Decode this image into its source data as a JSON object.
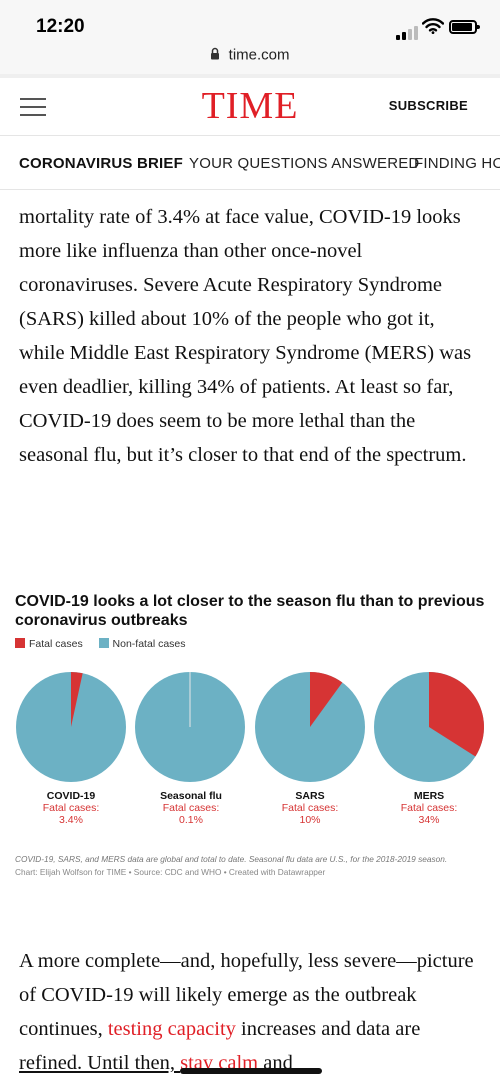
{
  "status_bar": {
    "time": "12:20"
  },
  "browser": {
    "url": "time.com"
  },
  "header": {
    "logo": "TIME",
    "subscribe_label": "SUBSCRIBE"
  },
  "nav": {
    "items": [
      {
        "label": "CORONAVIRUS BRIEF",
        "active": true
      },
      {
        "label": "YOUR QUESTIONS ANSWERED",
        "active": false
      },
      {
        "label": "FINDING HOPE",
        "active": false
      }
    ]
  },
  "article": {
    "paragraph_top": "mortality rate of 3.4% at face value, COVID-19 looks more like influenza than other once-novel coronaviruses. Severe Acute Respiratory Syndrome (SARS) killed about 10% of the people who got it, while Middle East Respiratory Syndrome (MERS) was even deadlier, killing 34% of patients. At least so far, COVID-19 does seem to be more lethal than the seasonal flu, but it’s closer to that end of the spectrum.",
    "paragraph_bottom": {
      "part1": "A more complete—and, hopefully, less severe—picture of COVID-19 will likely emerge as the outbreak continues, ",
      "link1": "testing capacity",
      "part2": " increases and data are ",
      "part3": "refined. Until then, ",
      "link2": "stay calm",
      "part4": " and"
    }
  },
  "chart_data": {
    "type": "pie",
    "title": "COVID-19 looks a lot closer to the season flu than to previous coronavirus outbreaks",
    "legend": [
      {
        "label": "Fatal cases",
        "color": "#d63434"
      },
      {
        "label": "Non-fatal cases",
        "color": "#6cb1c4"
      }
    ],
    "fatal_label_prefix": "Fatal cases:",
    "pies": [
      {
        "name": "COVID-19",
        "fatal_pct": 3.4,
        "fatal_label": "3.4%"
      },
      {
        "name": "Seasonal flu",
        "fatal_pct": 0.1,
        "fatal_label": "0.1%"
      },
      {
        "name": "SARS",
        "fatal_pct": 10,
        "fatal_label": "10%"
      },
      {
        "name": "MERS",
        "fatal_pct": 34,
        "fatal_label": "34%"
      }
    ],
    "notes": "COVID-19, SARS, and MERS data are global and total to date. Seasonal flu data are U.S., for the 2018-2019 season.",
    "source": "Chart: Elijah Wolfson for TIME • Source: CDC and WHO • Created with Datawrapper"
  },
  "colors": {
    "brand_red": "#e01f26",
    "fatal": "#d63434",
    "non_fatal": "#6cb1c4"
  }
}
